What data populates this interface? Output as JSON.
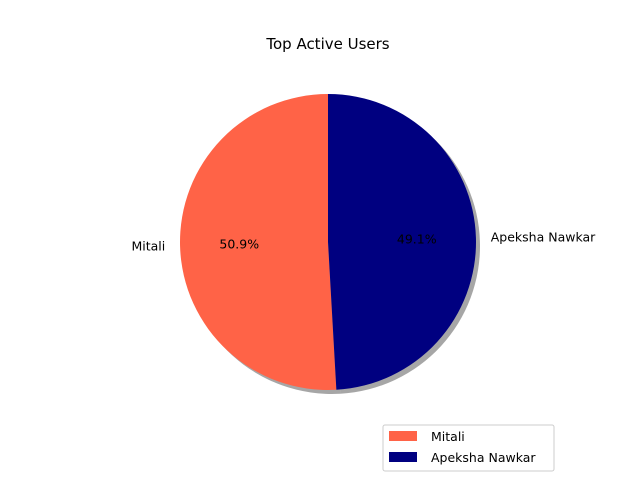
{
  "chart_data": {
    "type": "pie",
    "title": "Top Active Users",
    "slices": [
      {
        "label": "Mitali",
        "value": 50.9,
        "pct_label": "50.9%",
        "color": "#FF6347"
      },
      {
        "label": "Apeksha Nawkar",
        "value": 49.1,
        "pct_label": "49.1%",
        "color": "#000080"
      }
    ],
    "start_angle_deg": 90,
    "direction": "counterclockwise",
    "shadow": true,
    "legend_placement": "lower-right"
  }
}
